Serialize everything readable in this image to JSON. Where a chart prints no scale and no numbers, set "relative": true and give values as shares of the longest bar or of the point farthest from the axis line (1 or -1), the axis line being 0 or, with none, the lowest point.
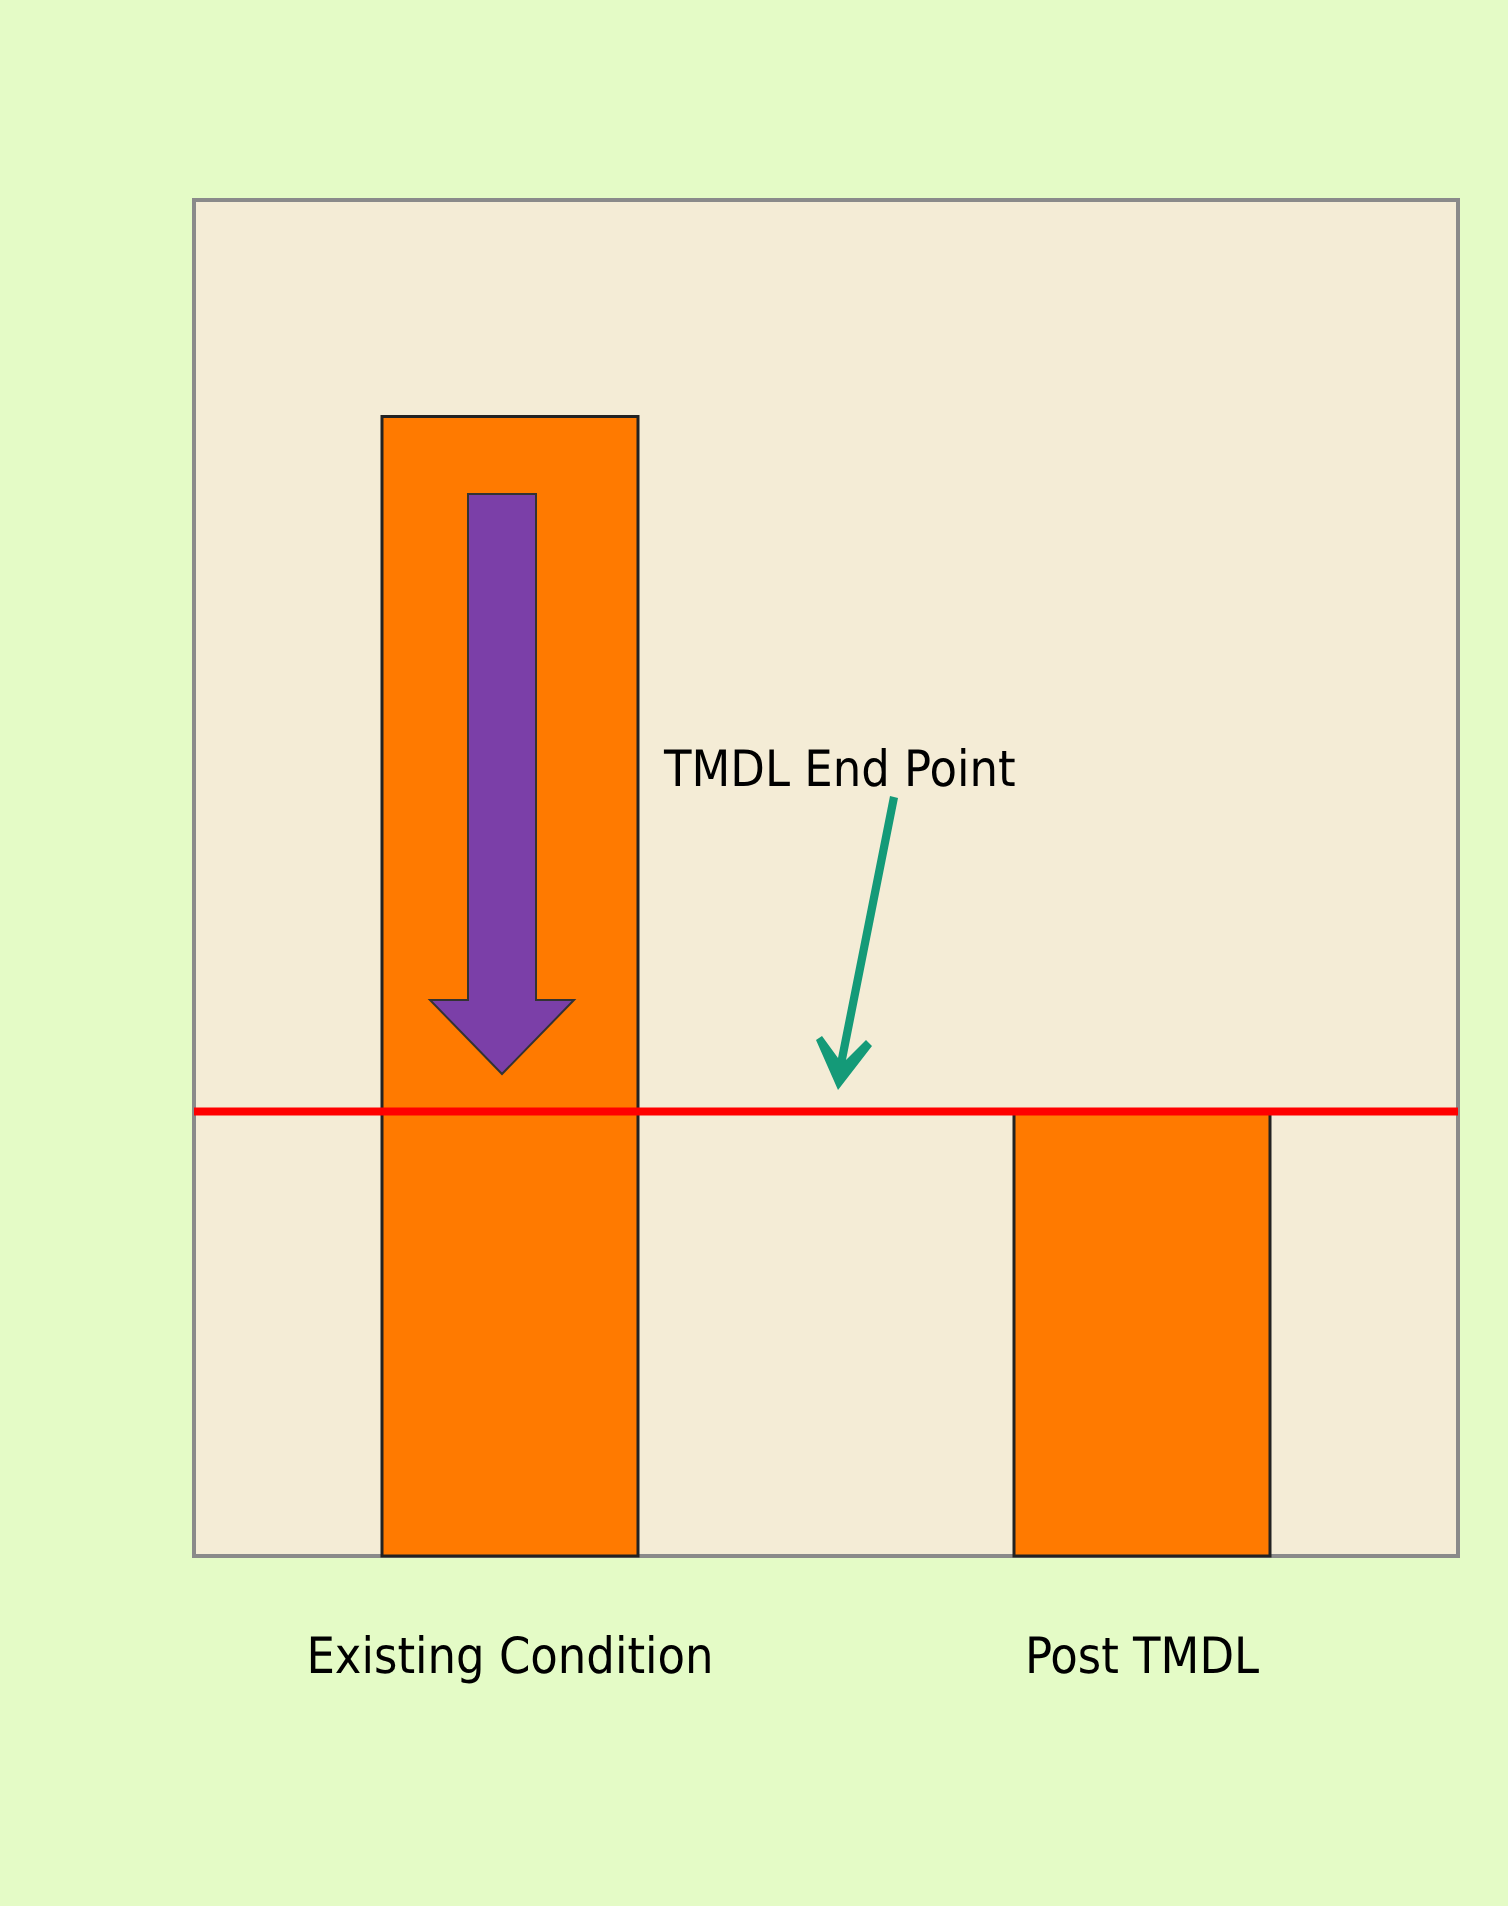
{
  "chart_data": {
    "type": "bar",
    "relative": true,
    "categories": [
      "Existing Condition",
      "Post TMDL"
    ],
    "values": [
      1,
      0.39
    ],
    "color": "#ff7a00",
    "ref_lines": [
      {
        "axis": "y",
        "value": 0.39,
        "color": "#ff0000"
      }
    ],
    "annotations": [
      "TMDL End Point"
    ]
  }
}
